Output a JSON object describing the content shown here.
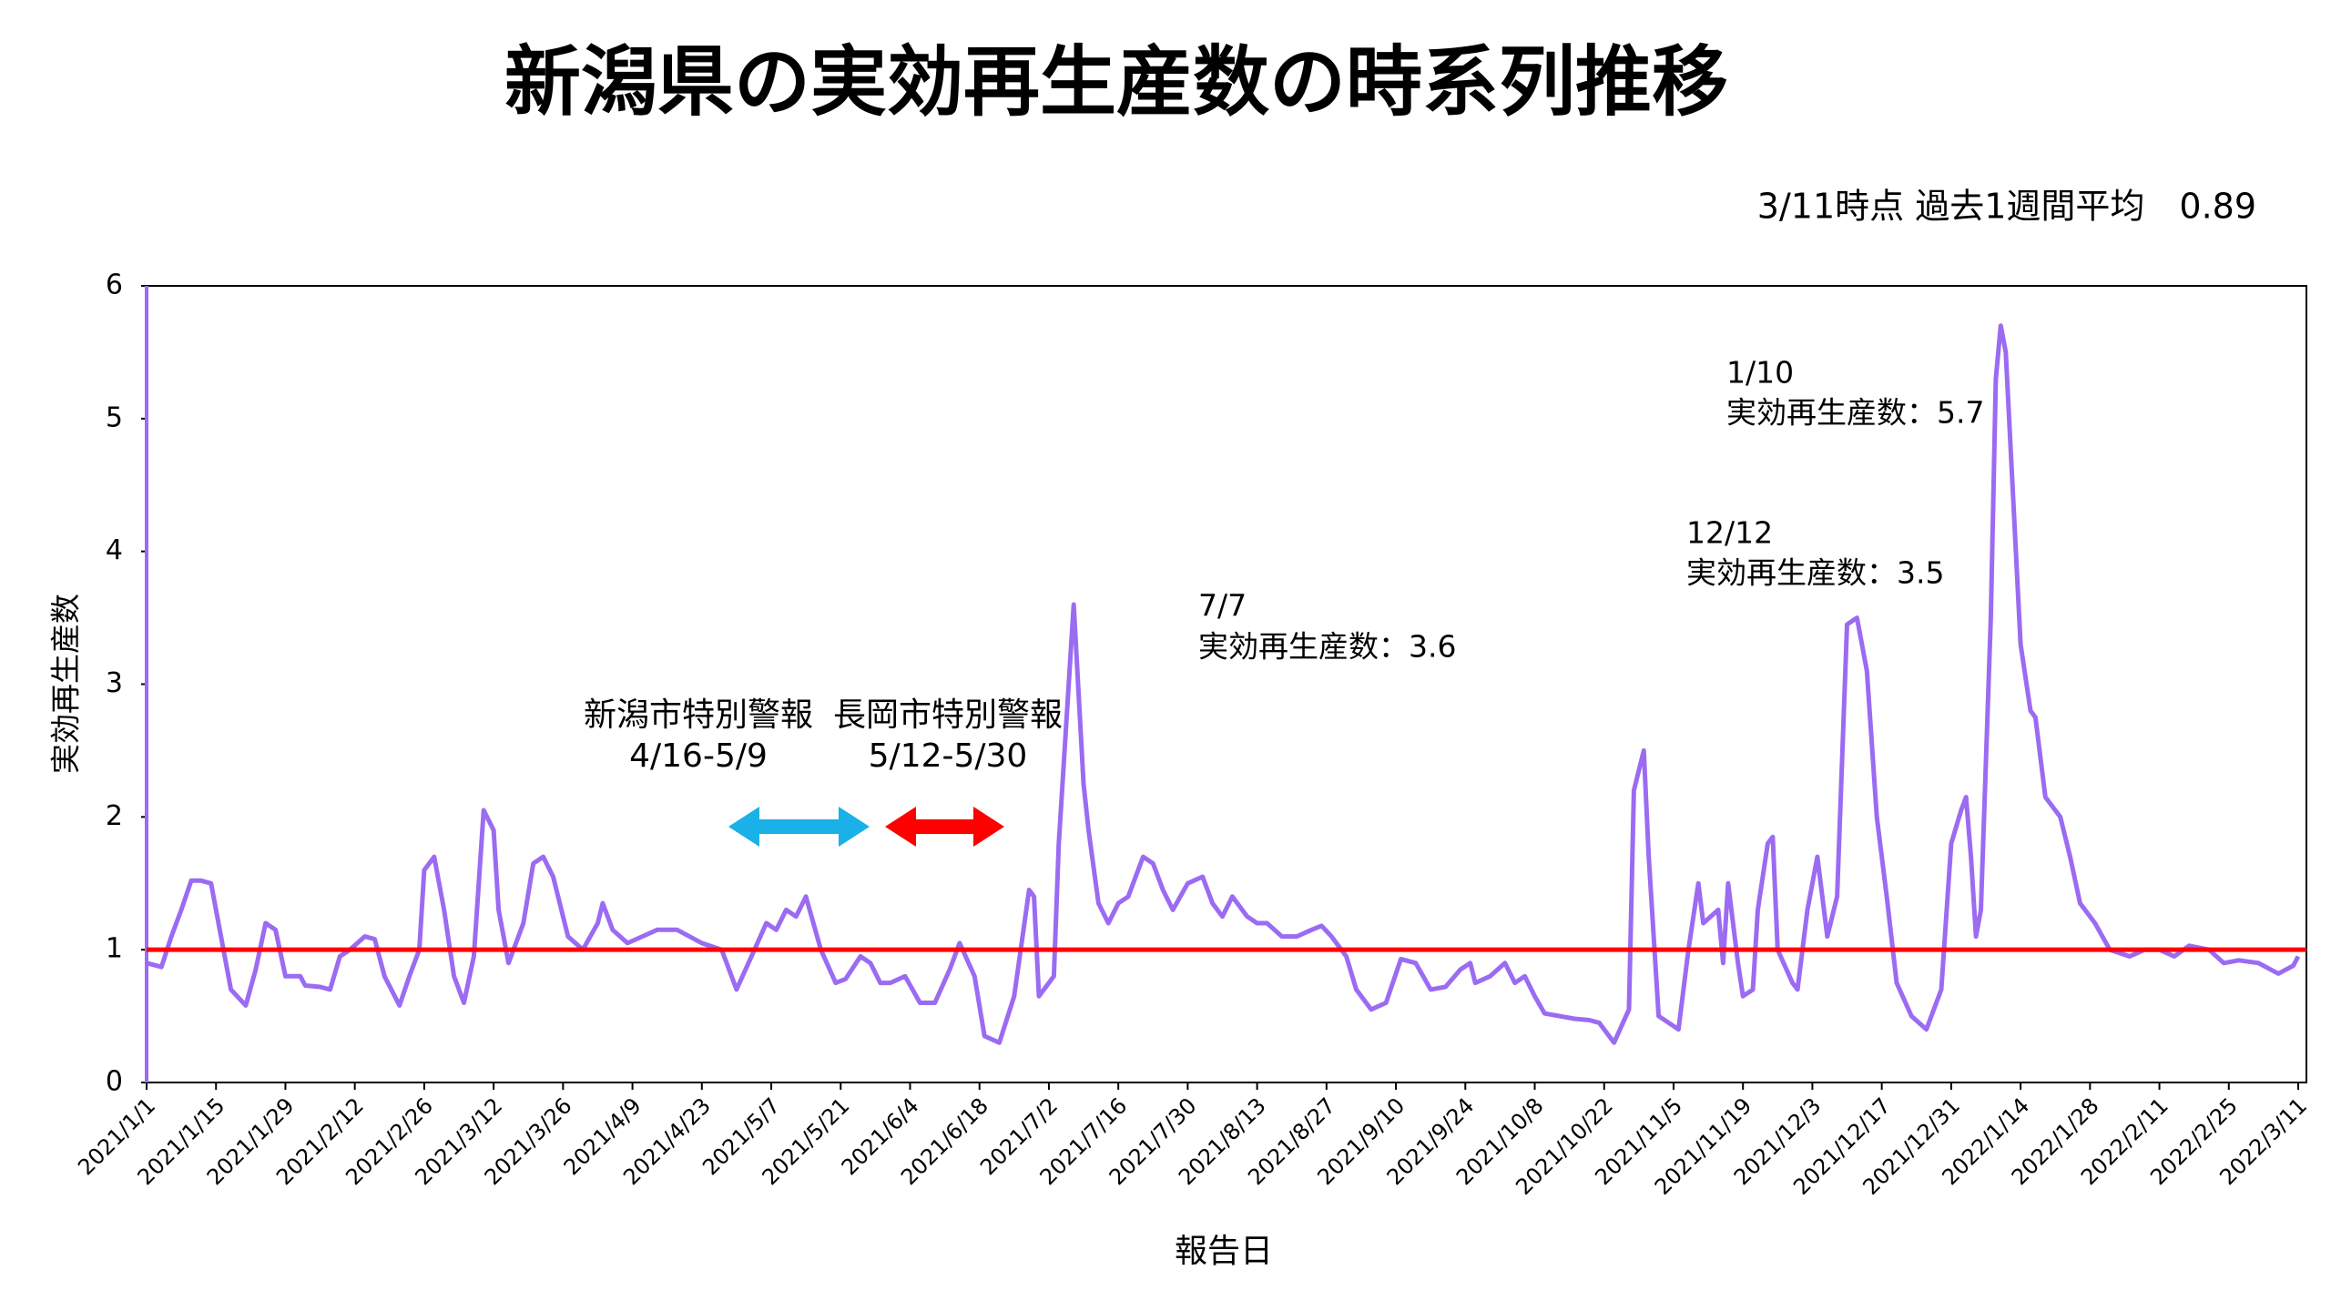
{
  "chart_data": {
    "type": "line",
    "title": "新潟県の実効再生産数の時系列推移",
    "subtitle": "3/11時点 過去1週間平均　0.89",
    "xlabel": "報告日",
    "ylabel": "実効再生産数",
    "x": [
      "2021/1/1",
      "2021/1/4",
      "2021/1/6",
      "2021/1/8",
      "2021/1/10",
      "2021/1/12",
      "2021/1/14",
      "2021/1/16",
      "2021/1/18",
      "2021/1/21",
      "2021/1/23",
      "2021/1/25",
      "2021/1/27",
      "2021/1/29",
      "2021/2/1",
      "2021/2/2",
      "2021/2/5",
      "2021/2/7",
      "2021/2/9",
      "2021/2/11",
      "2021/2/14",
      "2021/2/16",
      "2021/2/18",
      "2021/2/21",
      "2021/2/23",
      "2021/2/25",
      "2021/2/26",
      "2021/2/28",
      "2021/3/2",
      "2021/3/4",
      "2021/3/6",
      "2021/3/8",
      "2021/3/10",
      "2021/3/12",
      "2021/3/13",
      "2021/3/15",
      "2021/3/18",
      "2021/3/20",
      "2021/3/22",
      "2021/3/24",
      "2021/3/27",
      "2021/3/30",
      "2021/4/2",
      "2021/4/3",
      "2021/4/5",
      "2021/4/8",
      "2021/4/11",
      "2021/4/14",
      "2021/4/18",
      "2021/4/23",
      "2021/4/27",
      "2021/4/30",
      "2021/5/3",
      "2021/5/6",
      "2021/5/8",
      "2021/5/10",
      "2021/5/12",
      "2021/5/14",
      "2021/5/17",
      "2021/5/20",
      "2021/5/22",
      "2021/5/25",
      "2021/5/27",
      "2021/5/29",
      "2021/5/31",
      "2021/6/3",
      "2021/6/6",
      "2021/6/9",
      "2021/6/12",
      "2021/6/14",
      "2021/6/17",
      "2021/6/19",
      "2021/6/22",
      "2021/6/25",
      "2021/6/28",
      "2021/6/29",
      "2021/6/30",
      "2021/7/3",
      "2021/7/4",
      "2021/7/6",
      "2021/7/7",
      "2021/7/9",
      "2021/7/10",
      "2021/7/12",
      "2021/7/14",
      "2021/7/16",
      "2021/7/18",
      "2021/7/21",
      "2021/7/23",
      "2021/7/25",
      "2021/7/27",
      "2021/7/30",
      "2021/8/2",
      "2021/8/4",
      "2021/8/6",
      "2021/8/8",
      "2021/8/11",
      "2021/8/13",
      "2021/8/15",
      "2021/8/18",
      "2021/8/21",
      "2021/8/24",
      "2021/8/26",
      "2021/8/28",
      "2021/8/31",
      "2021/9/2",
      "2021/9/5",
      "2021/9/8",
      "2021/9/11",
      "2021/9/14",
      "2021/9/17",
      "2021/9/20",
      "2021/9/23",
      "2021/9/25",
      "2021/9/26",
      "2021/9/29",
      "2021/10/2",
      "2021/10/4",
      "2021/10/6",
      "2021/10/8",
      "2021/10/10",
      "2021/10/13",
      "2021/10/16",
      "2021/10/19",
      "2021/10/21",
      "2021/10/24",
      "2021/10/27",
      "2021/10/28",
      "2021/10/30",
      "2021/10/31",
      "2021/11/2",
      "2021/11/6",
      "2021/11/8",
      "2021/11/10",
      "2021/11/11",
      "2021/11/14",
      "2021/11/15",
      "2021/11/16",
      "2021/11/18",
      "2021/11/19",
      "2021/11/21",
      "2021/11/22",
      "2021/11/24",
      "2021/11/25",
      "2021/11/26",
      "2021/11/29",
      "2021/11/30",
      "2021/12/2",
      "2021/12/4",
      "2021/12/6",
      "2021/12/8",
      "2021/12/10",
      "2021/12/12",
      "2021/12/14",
      "2021/12/16",
      "2021/12/18",
      "2021/12/20",
      "2021/12/23",
      "2021/12/26",
      "2021/12/29",
      "2021/12/31",
      "2022/1/2",
      "2022/1/3",
      "2022/1/4",
      "2022/1/5",
      "2022/1/6",
      "2022/1/8",
      "2022/1/9",
      "2022/1/10",
      "2022/1/11",
      "2022/1/14",
      "2022/1/16",
      "2022/1/17",
      "2022/1/19",
      "2022/1/22",
      "2022/1/24",
      "2022/1/26",
      "2022/1/29",
      "2022/2/1",
      "2022/2/5",
      "2022/2/8",
      "2022/2/11",
      "2022/2/14",
      "2022/2/17",
      "2022/2/21",
      "2022/2/24",
      "2022/2/27",
      "2022/3/3",
      "2022/3/7",
      "2022/3/10",
      "2022/3/11"
    ],
    "series": [
      {
        "name": "実効再生産数",
        "color": "#9b6bf2",
        "values": [
          0.9,
          0.87,
          1.1,
          1.3,
          1.52,
          1.52,
          1.5,
          1.1,
          0.7,
          0.58,
          0.85,
          1.2,
          1.15,
          0.8,
          0.8,
          0.73,
          0.72,
          0.7,
          0.95,
          1.0,
          1.1,
          1.08,
          0.8,
          0.58,
          0.8,
          1.0,
          1.6,
          1.7,
          1.3,
          0.8,
          0.6,
          0.95,
          2.05,
          1.9,
          1.3,
          0.9,
          1.2,
          1.65,
          1.7,
          1.55,
          1.1,
          1.0,
          1.2,
          1.35,
          1.15,
          1.05,
          1.1,
          1.15,
          1.15,
          1.05,
          1.0,
          0.7,
          0.95,
          1.2,
          1.15,
          1.3,
          1.25,
          1.4,
          1.0,
          0.75,
          0.78,
          0.95,
          0.9,
          0.75,
          0.75,
          0.8,
          0.6,
          0.6,
          0.85,
          1.05,
          0.8,
          0.35,
          0.3,
          0.65,
          1.45,
          1.4,
          0.65,
          0.8,
          1.8,
          3.0,
          3.6,
          2.25,
          1.9,
          1.35,
          1.2,
          1.35,
          1.4,
          1.7,
          1.65,
          1.45,
          1.3,
          1.5,
          1.55,
          1.35,
          1.25,
          1.4,
          1.25,
          1.2,
          1.2,
          1.1,
          1.1,
          1.15,
          1.18,
          1.1,
          0.95,
          0.7,
          0.55,
          0.6,
          0.93,
          0.9,
          0.7,
          0.72,
          0.85,
          0.9,
          0.75,
          0.8,
          0.9,
          0.75,
          0.8,
          0.65,
          0.52,
          0.5,
          0.48,
          0.47,
          0.45,
          0.3,
          0.55,
          2.2,
          2.5,
          1.7,
          0.5,
          0.4,
          1.0,
          1.5,
          1.2,
          1.3,
          0.9,
          1.5,
          0.9,
          0.65,
          0.7,
          1.3,
          1.8,
          1.85,
          1.0,
          0.75,
          0.7,
          1.3,
          1.7,
          1.1,
          1.4,
          3.45,
          3.5,
          3.1,
          2.0,
          1.4,
          0.75,
          0.5,
          0.4,
          0.7,
          1.8,
          2.05,
          2.15,
          1.7,
          1.1,
          1.3,
          3.5,
          5.3,
          5.7,
          5.5,
          3.3,
          2.8,
          2.75,
          2.15,
          2.0,
          1.7,
          1.35,
          1.2,
          1.0,
          0.95,
          1.0,
          1.0,
          0.95,
          1.03,
          1.0,
          0.9,
          0.92,
          0.9,
          0.82,
          0.88,
          0.95
        ]
      }
    ],
    "xlim": [
      "2021/1/1",
      "2022/3/11"
    ],
    "xticks": [
      "2021/1/1",
      "2021/1/15",
      "2021/1/29",
      "2021/2/12",
      "2021/2/26",
      "2021/3/12",
      "2021/3/26",
      "2021/4/9",
      "2021/4/23",
      "2021/5/7",
      "2021/5/21",
      "2021/6/4",
      "2021/6/18",
      "2021/7/2",
      "2021/7/16",
      "2021/7/30",
      "2021/8/13",
      "2021/8/27",
      "2021/9/10",
      "2021/9/24",
      "2021/10/8",
      "2021/10/22",
      "2021/11/5",
      "2021/11/19",
      "2021/12/3",
      "2021/12/17",
      "2021/12/31",
      "2022/1/14",
      "2022/1/28",
      "2022/2/11",
      "2022/2/25",
      "2022/3/11"
    ],
    "ylim": [
      0,
      6
    ],
    "yticks": [
      0,
      1,
      2,
      3,
      4,
      5,
      6
    ],
    "reference_line": {
      "value": 1,
      "color": "#ff0000"
    },
    "annotations": [
      {
        "lines": [
          "新潟市特別警報",
          "4/16-5/9"
        ],
        "color": "#1ab0e8"
      },
      {
        "lines": [
          "長岡市特別警報",
          "5/12-5/30"
        ],
        "color": "#ff0000"
      },
      {
        "lines": [
          "7/7",
          "実効再生産数：3.6"
        ]
      },
      {
        "lines": [
          "12/12",
          "実効再生産数：3.5"
        ]
      },
      {
        "lines": [
          "1/10",
          "実効再生産数：5.7"
        ]
      }
    ]
  }
}
